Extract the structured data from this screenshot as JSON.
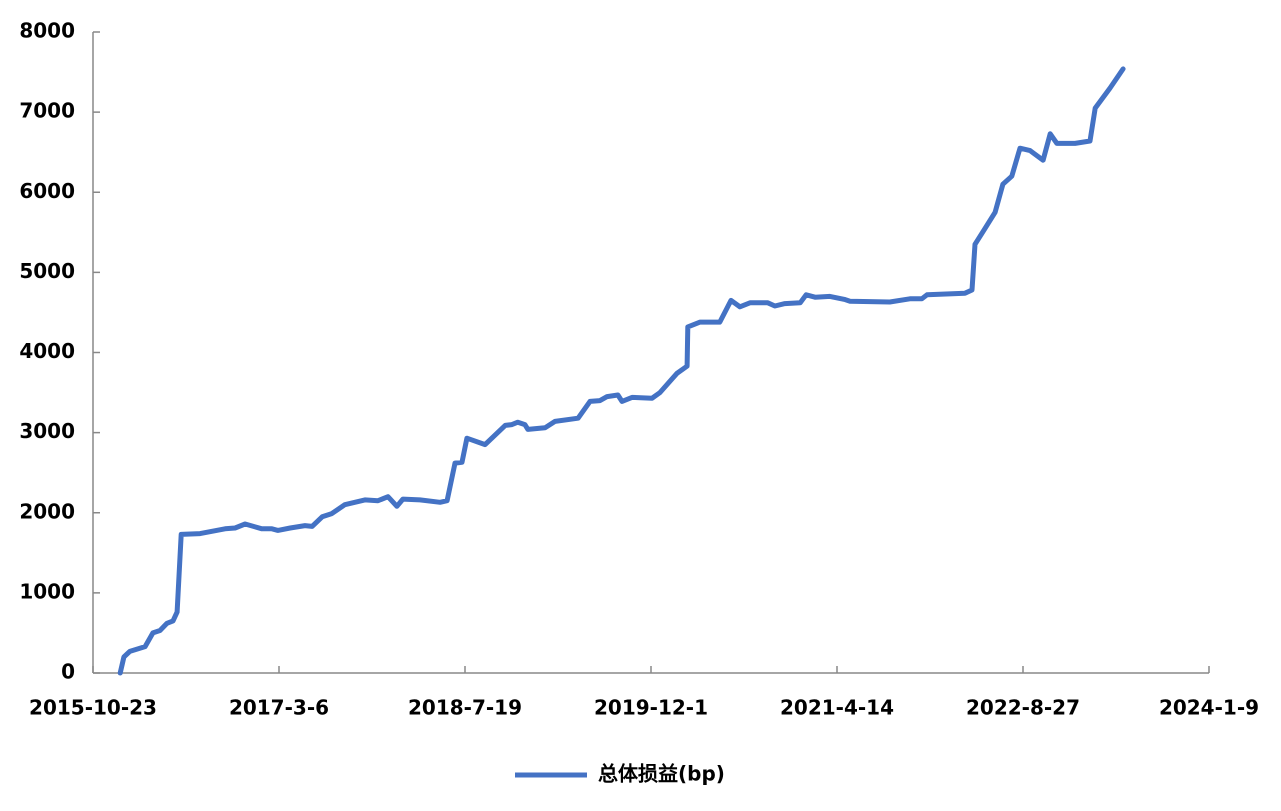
{
  "chart_data": {
    "type": "line",
    "x": [
      "2016-01-04",
      "2016-01-14",
      "2016-01-30",
      "2016-03-11",
      "2016-04-01",
      "2016-04-20",
      "2016-05-09",
      "2016-05-25",
      "2016-06-05",
      "2016-06-16",
      "2016-08-06",
      "2016-10-12",
      "2016-11-08",
      "2016-12-05",
      "2017-01-19",
      "2017-02-15",
      "2017-03-03",
      "2017-04-05",
      "2017-05-15",
      "2017-06-03",
      "2017-06-30",
      "2017-07-26",
      "2017-08-30",
      "2017-10-23",
      "2017-11-27",
      "2017-12-24",
      "2018-01-17",
      "2018-02-02",
      "2018-03-20",
      "2018-05-13",
      "2018-06-01",
      "2018-06-22",
      "2018-07-11",
      "2018-07-24",
      "2018-09-11",
      "2018-11-04",
      "2018-11-22",
      "2018-12-08",
      "2018-12-27",
      "2019-01-04",
      "2019-02-19",
      "2019-03-18",
      "2019-05-19",
      "2019-06-20",
      "2019-07-17",
      "2019-08-05",
      "2019-09-03",
      "2019-09-14",
      "2019-10-11",
      "2019-12-04",
      "2019-12-25",
      "2020-02-09",
      "2020-03-07",
      "2020-03-09",
      "2020-04-11",
      "2020-06-03",
      "2020-07-03",
      "2020-07-27",
      "2020-08-23",
      "2020-10-10",
      "2020-10-29",
      "2020-11-25",
      "2021-01-05",
      "2021-01-21",
      "2021-02-14",
      "2021-03-26",
      "2021-05-06",
      "2021-05-19",
      "2021-09-03",
      "2021-10-27",
      "2021-11-28",
      "2021-12-12",
      "2022-03-24",
      "2022-04-12",
      "2022-04-20",
      "2022-05-17",
      "2022-06-13",
      "2022-07-04",
      "2022-07-28",
      "2022-08-19",
      "2022-09-15",
      "2022-10-20",
      "2022-11-08",
      "2022-11-26",
      "2023-01-14",
      "2023-02-23",
      "2023-03-09",
      "2023-04-18",
      "2023-05-23"
    ],
    "series": [
      {
        "name": "总体损益(bp)",
        "color": "#4472c4",
        "values": [
          0,
          200,
          270,
          330,
          500,
          530,
          620,
          650,
          760,
          1730,
          1740,
          1800,
          1810,
          1860,
          1800,
          1800,
          1780,
          1810,
          1840,
          1830,
          1950,
          1990,
          2100,
          2160,
          2150,
          2200,
          2080,
          2170,
          2160,
          2130,
          2150,
          2620,
          2630,
          2930,
          2850,
          3090,
          3100,
          3130,
          3100,
          3040,
          3060,
          3140,
          3180,
          3390,
          3400,
          3450,
          3470,
          3390,
          3440,
          3430,
          3500,
          3740,
          3830,
          4320,
          4380,
          4380,
          4650,
          4570,
          4620,
          4620,
          4580,
          4610,
          4620,
          4720,
          4690,
          4700,
          4660,
          4640,
          4630,
          4670,
          4670,
          4720,
          4740,
          4780,
          5350,
          5550,
          5750,
          6100,
          6200,
          6550,
          6520,
          6400,
          6730,
          6610,
          6610,
          6640,
          7050,
          7300,
          7540
        ]
      }
    ],
    "xlim": [
      "2015-10-23",
      "2024-01-09"
    ],
    "xticks": [
      {
        "value": "2015-10-23",
        "label": "2015-10-23"
      },
      {
        "value": "2017-03-06",
        "label": "2017-3-6"
      },
      {
        "value": "2018-07-19",
        "label": "2018-7-19"
      },
      {
        "value": "2019-12-01",
        "label": "2019-12-1"
      },
      {
        "value": "2021-04-14",
        "label": "2021-4-14"
      },
      {
        "value": "2022-08-27",
        "label": "2022-8-27"
      },
      {
        "value": "2024-01-09",
        "label": "2024-1-9"
      }
    ],
    "ylim": [
      0,
      8000
    ],
    "yticks": [
      0,
      1000,
      2000,
      3000,
      4000,
      5000,
      6000,
      7000,
      8000
    ],
    "legend": "bottom"
  }
}
